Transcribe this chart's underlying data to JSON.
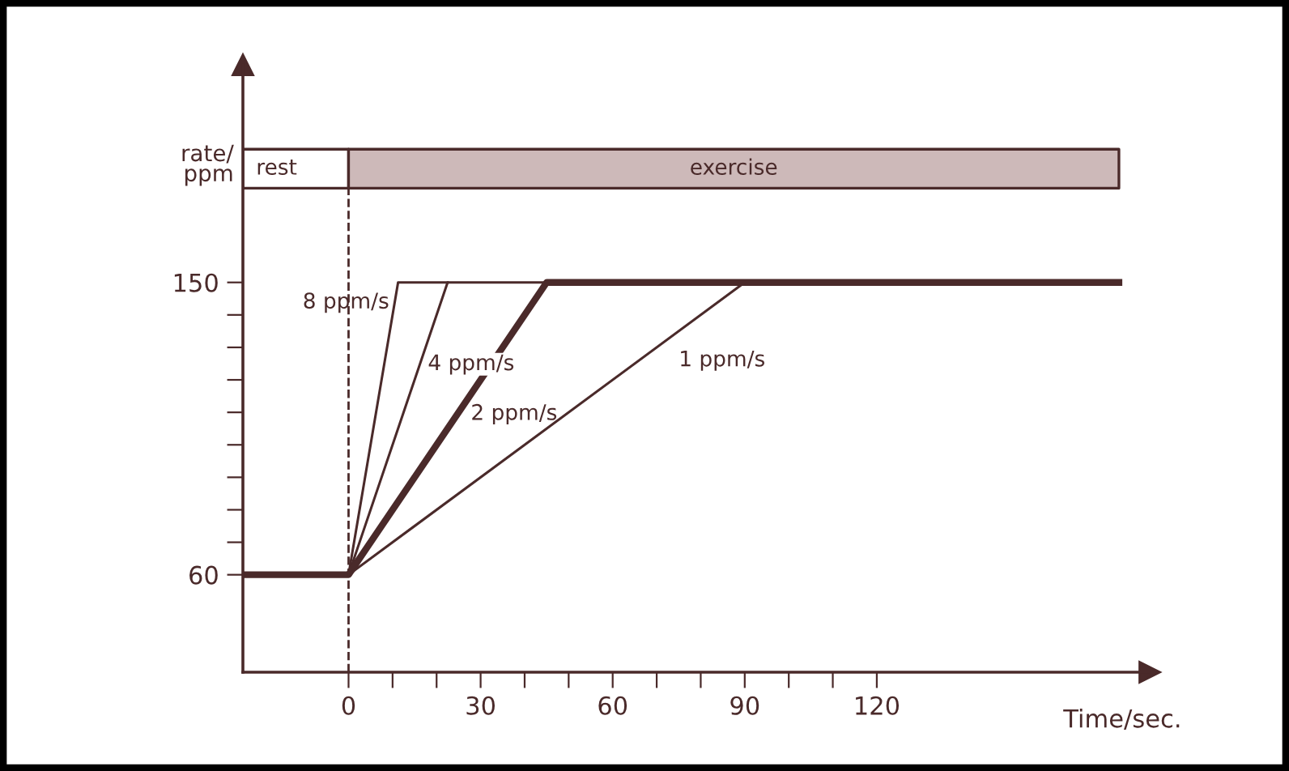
{
  "chart_data": {
    "type": "line",
    "xlabel": "Time/sec.",
    "ylabel": "rate/\nppm",
    "xlim": [
      -24,
      182
    ],
    "ylim": [
      30,
      217
    ],
    "xticks": [
      0,
      {
        "value": 10,
        "label": null
      },
      {
        "value": 20,
        "label": null
      },
      30,
      {
        "value": 40,
        "label": null
      },
      {
        "value": 50,
        "label": null
      },
      60,
      {
        "value": 70,
        "label": null
      },
      {
        "value": 80,
        "label": null
      },
      90,
      {
        "value": 100,
        "label": null
      },
      {
        "value": 110,
        "label": null
      },
      120
    ],
    "yticks": [
      60,
      {
        "value": 70,
        "label": null
      },
      {
        "value": 80,
        "label": null
      },
      {
        "value": 90,
        "label": null
      },
      {
        "value": 100,
        "label": null
      },
      {
        "value": 110,
        "label": null
      },
      {
        "value": 120,
        "label": null
      },
      {
        "value": 130,
        "label": null
      },
      {
        "value": 140,
        "label": null
      },
      150
    ],
    "grid": false,
    "legend": false,
    "marker": "none",
    "line_style": "solid",
    "series": [
      {
        "name": "8 ppm/s",
        "color": "#4a2a2a",
        "x": [
          0,
          11.25,
          22.5
        ],
        "values": [
          60,
          150,
          150
        ]
      },
      {
        "name": "4 ppm/s",
        "color": "#4a2a2a",
        "x": [
          0,
          22.5,
          45
        ],
        "values": [
          60,
          150,
          150
        ]
      },
      {
        "name": "2 ppm/s",
        "color": "#4a2a2a",
        "x": [
          -24,
          0,
          45,
          175
        ],
        "values": [
          60,
          60,
          150,
          150
        ]
      },
      {
        "name": "1 ppm/s",
        "color": "#4a2a2a",
        "x": [
          0,
          90
        ],
        "values": [
          60,
          150
        ]
      }
    ],
    "bands": [
      {
        "axis": "x",
        "from": -24,
        "to": 0,
        "label": "rest",
        "color": "#ffffff"
      },
      {
        "axis": "x",
        "from": 0,
        "to": 175,
        "label": "exercise",
        "color": "#cdb9b9"
      }
    ],
    "ref_lines": [
      {
        "axis": "x",
        "value": 0,
        "line_style": "dashed",
        "color": "#4a2a2a"
      }
    ]
  }
}
